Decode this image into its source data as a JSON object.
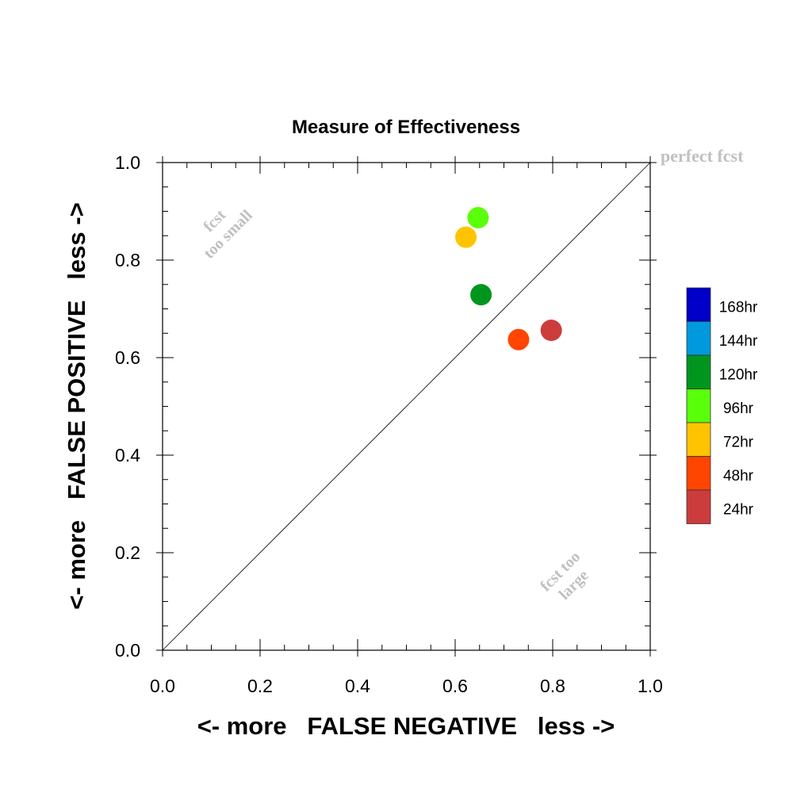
{
  "chart_data": {
    "type": "scatter",
    "title": "Measure of Effectiveness",
    "xlabel": "<- more   FALSE NEGATIVE   less ->",
    "ylabel": "<- more   FALSE POSITIVE   less ->",
    "xlim": [
      0.0,
      1.0
    ],
    "ylim": [
      0.0,
      1.0
    ],
    "xticks": [
      "0.0",
      "0.2",
      "0.4",
      "0.6",
      "0.8",
      "1.0"
    ],
    "yticks": [
      "0.0",
      "0.2",
      "0.4",
      "0.6",
      "0.8",
      "1.0"
    ],
    "grid": false,
    "reference_line": "diagonal",
    "annotations": {
      "perfect": "perfect fcst",
      "too_small": [
        "fcst",
        "too small"
      ],
      "too_large": [
        "fcst too",
        "large"
      ]
    },
    "legend": {
      "placement": "right",
      "entries": [
        {
          "label": "168hr",
          "color": "#0000c8"
        },
        {
          "label": "144hr",
          "color": "#0099dd"
        },
        {
          "label": "120hr",
          "color": "#00961e"
        },
        {
          "label": "96hr",
          "color": "#5aff0a"
        },
        {
          "label": "72hr",
          "color": "#ffc400"
        },
        {
          "label": "48hr",
          "color": "#ff4500"
        },
        {
          "label": "24hr",
          "color": "#cd3c3c"
        }
      ]
    },
    "points": [
      {
        "series": "96hr",
        "x": 0.647,
        "y": 0.887,
        "color": "#5aff0a"
      },
      {
        "series": "72hr",
        "x": 0.622,
        "y": 0.847,
        "color": "#ffc400"
      },
      {
        "series": "120hr",
        "x": 0.653,
        "y": 0.729,
        "color": "#00961e"
      },
      {
        "series": "24hr",
        "x": 0.797,
        "y": 0.656,
        "color": "#cd3c3c"
      },
      {
        "series": "48hr",
        "x": 0.73,
        "y": 0.637,
        "color": "#ff4500"
      }
    ]
  }
}
